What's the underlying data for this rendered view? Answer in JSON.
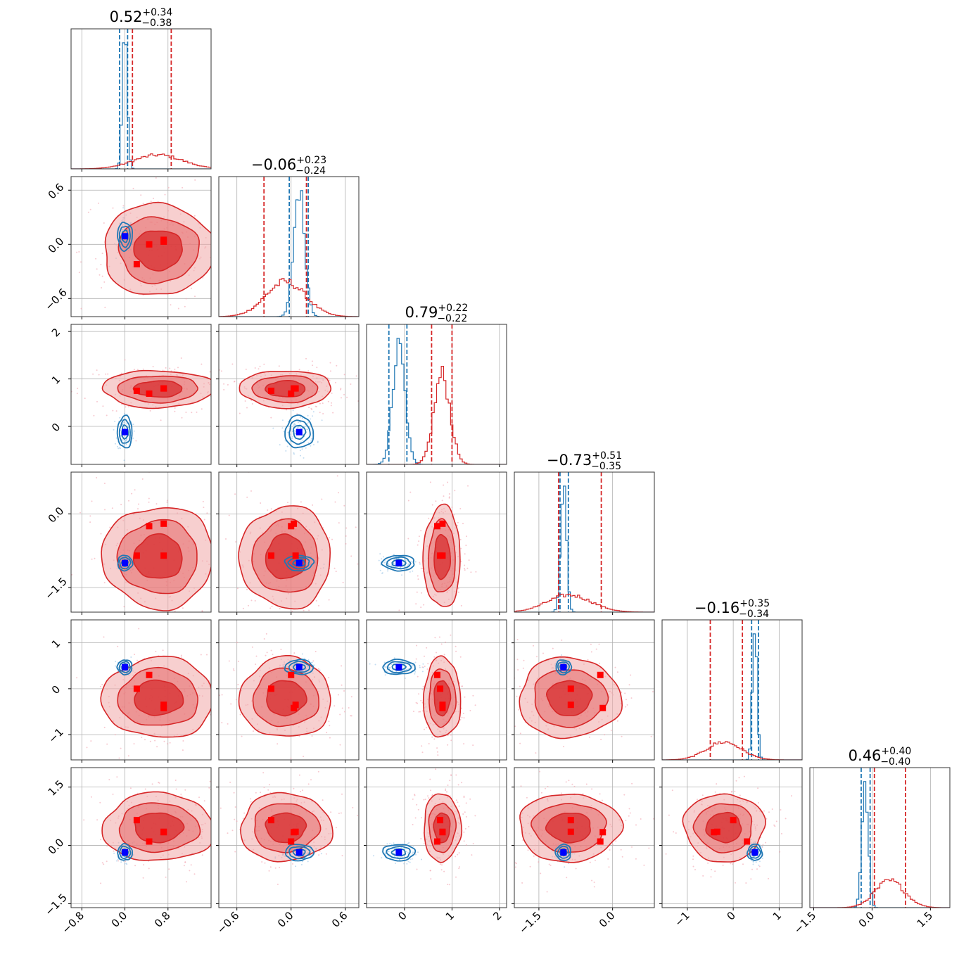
{
  "chart_data": {
    "type": "corner",
    "n_params": 6,
    "grid": true,
    "colors": {
      "posterior_a": "#1f77b4",
      "posterior_b": "#d62728",
      "marker_a": "#0000ff",
      "marker_b": "#ff0000"
    },
    "params": [
      {
        "range": [
          -1.0,
          1.6
        ],
        "ticks": [
          -0.8,
          0.0,
          0.8
        ],
        "tick_labels": [
          "−0.8",
          "0.0",
          "0.8"
        ],
        "title": {
          "value": "0.52",
          "upper": "+0.34",
          "lower": "−0.38"
        },
        "blue": {
          "mean": 0.0,
          "sd": 0.045,
          "quantiles": [
            -0.1,
            0.05
          ]
        },
        "red": {
          "mean": 0.62,
          "sd": 0.45,
          "quantiles": [
            0.14,
            0.86
          ]
        }
      },
      {
        "range": [
          -0.8,
          0.75
        ],
        "ticks": [
          -0.6,
          0.0,
          0.6
        ],
        "tick_labels": [
          "−0.6",
          "0.0",
          "0.6"
        ],
        "title": {
          "value": "−0.06",
          "upper": "+0.23",
          "lower": "−0.24"
        },
        "blue": {
          "mean": 0.09,
          "sd": 0.06,
          "quantiles": [
            -0.02,
            0.19
          ]
        },
        "red": {
          "mean": -0.06,
          "sd": 0.22,
          "quantiles": [
            -0.3,
            0.17
          ]
        }
      },
      {
        "range": [
          -0.8,
          2.15
        ],
        "ticks": [
          0,
          1,
          2
        ],
        "tick_labels": [
          "0",
          "1",
          "2"
        ],
        "title": {
          "value": "0.79",
          "upper": "+0.22",
          "lower": "−0.22"
        },
        "blue": {
          "mean": -0.12,
          "sd": 0.13,
          "quantiles": [
            -0.33,
            0.05
          ]
        },
        "red": {
          "mean": 0.79,
          "sd": 0.17,
          "quantiles": [
            0.57,
            1.0
          ]
        }
      },
      {
        "range": [
          -2.0,
          0.85
        ],
        "ticks": [
          -1.5,
          0.0
        ],
        "tick_labels": [
          "−1.5",
          "0.0"
        ],
        "title": {
          "value": "−0.73",
          "upper": "+0.51",
          "lower": "−0.35"
        },
        "blue": {
          "mean": -1.0,
          "sd": 0.06,
          "quantiles": [
            -1.07,
            -0.9
          ]
        },
        "red": {
          "mean": -0.88,
          "sd": 0.45,
          "quantiles": [
            -1.1,
            -0.23
          ]
        }
      },
      {
        "range": [
          -1.55,
          1.5
        ],
        "ticks": [
          -1,
          0,
          1
        ],
        "tick_labels": [
          "−1",
          "0",
          "1"
        ],
        "title": {
          "value": "−0.16",
          "upper": "+0.35",
          "lower": "−0.34"
        },
        "blue": {
          "mean": 0.47,
          "sd": 0.05,
          "quantiles": [
            0.4,
            0.55
          ]
        },
        "red": {
          "mean": -0.2,
          "sd": 0.38,
          "quantiles": [
            -0.5,
            0.2
          ]
        }
      },
      {
        "range": [
          -1.6,
          2.0
        ],
        "ticks": [
          -1.5,
          0.0,
          1.5
        ],
        "tick_labels": [
          "−1.5",
          "0.0",
          "1.5"
        ],
        "title": {
          "value": "0.46",
          "upper": "+0.40",
          "lower": "−0.40"
        },
        "blue": {
          "mean": -0.18,
          "sd": 0.08,
          "quantiles": [
            -0.28,
            -0.05
          ]
        },
        "red": {
          "mean": 0.46,
          "sd": 0.38,
          "quantiles": [
            0.06,
            0.86
          ]
        }
      }
    ],
    "markers_red": [
      [
        0.72,
        0.05,
        0.8,
        -0.85,
        -0.35,
        0.35
      ],
      [
        0.45,
        0.0,
        0.69,
        -0.25,
        0.3,
        0.1
      ],
      [
        0.22,
        -0.22,
        0.75,
        -0.85,
        0.0,
        0.65
      ],
      [
        0.72,
        0.03,
        0.8,
        -0.2,
        -0.42,
        0.34
      ]
    ],
    "markers_blue": [
      [
        0.0,
        0.09,
        -0.12,
        -1.0,
        0.47,
        -0.18
      ]
    ]
  }
}
